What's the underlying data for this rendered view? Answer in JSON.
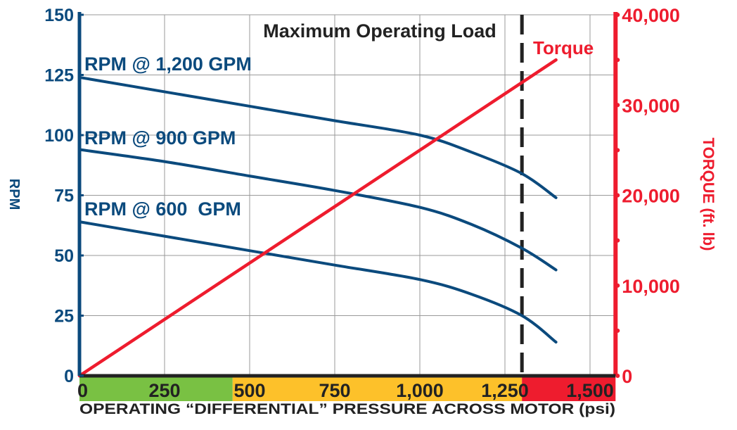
{
  "chart_data": {
    "type": "line",
    "title": "Maximum Operating Load",
    "xlabel": "OPERATING “DIFFERENTIAL” PRESSURE ACROSS MOTOR (psi)",
    "ylabel": "RPM",
    "y2label": "TORQUE (ft. lb)",
    "xlim": [
      0,
      1575
    ],
    "ylim": [
      0,
      150
    ],
    "y2lim": [
      0,
      40000
    ],
    "grid": true,
    "x_ticks": [
      0,
      250,
      500,
      750,
      1000,
      1250,
      1500
    ],
    "x_tick_labels": [
      "0",
      "250",
      "500",
      "750",
      "1,000",
      "1,250",
      "1,500"
    ],
    "y_ticks": [
      0,
      25,
      50,
      75,
      100,
      125,
      150
    ],
    "y_tick_labels": [
      "0",
      "25",
      "50",
      "75",
      "100",
      "125",
      "150"
    ],
    "y2_ticks": [
      0,
      10000,
      20000,
      30000,
      40000
    ],
    "y2_tick_labels": [
      "0",
      "10,000",
      "20,000",
      "30,000",
      "40,000"
    ],
    "max_operating_load_psi": 1300,
    "zones": [
      {
        "from": 0,
        "to": 450,
        "color": "#79c143"
      },
      {
        "from": 450,
        "to": 1300,
        "color": "#fdc12a"
      },
      {
        "from": 1300,
        "to": 1575,
        "color": "#ee1c2e"
      }
    ],
    "series": [
      {
        "name": "RPM @ 1,200 GPM",
        "axis": "left",
        "color": "#0b4a7d",
        "x": [
          0,
          250,
          500,
          750,
          1000,
          1150,
          1300,
          1400
        ],
        "y": [
          124,
          118,
          112,
          106,
          100,
          93,
          84,
          74
        ]
      },
      {
        "name": "RPM @ 900 GPM",
        "axis": "left",
        "color": "#0b4a7d",
        "x": [
          0,
          250,
          500,
          750,
          1000,
          1150,
          1300,
          1400
        ],
        "y": [
          94,
          89,
          83,
          77,
          70,
          63,
          53,
          44
        ]
      },
      {
        "name": "RPM @ 600  GPM",
        "axis": "left",
        "color": "#0b4a7d",
        "x": [
          0,
          250,
          500,
          750,
          1000,
          1150,
          1300,
          1400
        ],
        "y": [
          64,
          58,
          52,
          46,
          40,
          34,
          25,
          14
        ]
      },
      {
        "name": "Torque",
        "axis": "right",
        "color": "#ee1c2e",
        "x": [
          0,
          1400
        ],
        "y": [
          0,
          35000
        ]
      }
    ],
    "colors": {
      "rpm_axis": "#0b4a7d",
      "torque_axis": "#ee1c2e",
      "grid": "#999999",
      "dashed_line": "#222222"
    }
  }
}
